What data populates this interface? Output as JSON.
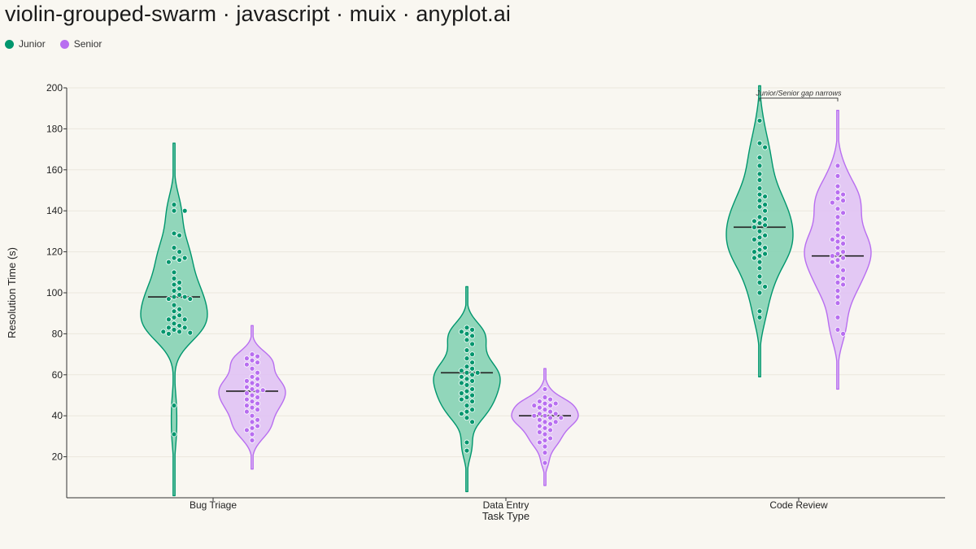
{
  "title": "violin-grouped-swarm · javascript · muix · anyplot.ai",
  "legend": {
    "items": [
      {
        "label": "Junior",
        "color": "#00966d"
      },
      {
        "label": "Senior",
        "color": "#b86ef0"
      }
    ],
    "placement": "top-left"
  },
  "chart_data": {
    "type": "violin",
    "xlabel": "Task Type",
    "ylabel": "Resolution Time (s)",
    "categories": [
      "Bug Triage",
      "Data Entry",
      "Code Review"
    ],
    "ylim": [
      0,
      200
    ],
    "yticks": [
      20,
      40,
      60,
      80,
      100,
      120,
      140,
      160,
      180,
      200
    ],
    "grid": true,
    "annotation": {
      "text": "Junior/Senior gap narrows",
      "category": "Code Review"
    },
    "series": [
      {
        "name": "Junior",
        "color": "#00966d",
        "fill": "#7fd0b0",
        "groups": [
          {
            "category": "Bug Triage",
            "median": 98,
            "range": [
              1,
              173
            ],
            "points": [
              143,
              140,
              140,
              129,
              128,
              122,
              120,
              117,
              117,
              116,
              115,
              110,
              107,
              105,
              104,
              102,
              101,
              99,
              98,
              98,
              97,
              97,
              94,
              92,
              91,
              89,
              88,
              87,
              87,
              85,
              84,
              83,
              83,
              82,
              81,
              81,
              80.5,
              80,
              45,
              31
            ]
          },
          {
            "category": "Data Entry",
            "median": 61,
            "range": [
              3,
              103
            ],
            "points": [
              83,
              82,
              81,
              80,
              79,
              77,
              75,
              72,
              70,
              68,
              66,
              64,
              63,
              62,
              61,
              61,
              60,
              59,
              58,
              57,
              56,
              55,
              53,
              52,
              51,
              50,
              49,
              48,
              47,
              45,
              43,
              42,
              41,
              39,
              37,
              27,
              23
            ]
          },
          {
            "category": "Code Review",
            "median": 132,
            "range": [
              59,
              201
            ],
            "points": [
              184,
              173,
              171,
              166,
              162,
              158,
              155,
              151,
              148,
              147,
              145,
              143,
              142,
              140,
              137,
              136,
              135,
              134,
              133,
              132,
              130,
              128,
              127,
              126,
              124,
              122,
              121,
              120,
              119,
              118,
              117,
              115,
              112,
              108,
              105,
              103,
              100,
              91,
              88
            ]
          }
        ]
      },
      {
        "name": "Senior",
        "color": "#b86ef0",
        "fill": "#dfbff5",
        "groups": [
          {
            "category": "Bug Triage",
            "median": 52,
            "range": [
              14,
              84
            ],
            "points": [
              70,
              69,
              68,
              67,
              66,
              65,
              63,
              61,
              59,
              58,
              57,
              56,
              55,
              54,
              53,
              52.5,
              52,
              51,
              50,
              49,
              48,
              47,
              46,
              45,
              44,
              43,
              42,
              40,
              38,
              37,
              35,
              34,
              33,
              31,
              28
            ]
          },
          {
            "category": "Data Entry",
            "median": 40,
            "range": [
              6,
              63
            ],
            "points": [
              53,
              49,
              48,
              47,
              46,
              46,
              45,
              45,
              44,
              43,
              42,
              41,
              41,
              40,
              40,
              39,
              39,
              38,
              37,
              37,
              36,
              35,
              34,
              33,
              32,
              31,
              29,
              28,
              27,
              25,
              22,
              17
            ]
          },
          {
            "category": "Code Review",
            "median": 118,
            "range": [
              53,
              189
            ],
            "points": [
              162,
              157,
              152,
              149,
              148,
              146,
              145,
              144,
              141,
              139,
              137,
              134,
              131,
              128,
              127,
              126,
              125,
              124,
              122,
              120,
              119,
              118,
              117,
              116,
              115,
              113,
              111,
              108,
              107,
              105,
              104,
              101,
              98,
              95,
              88,
              82,
              80
            ]
          }
        ]
      }
    ]
  }
}
